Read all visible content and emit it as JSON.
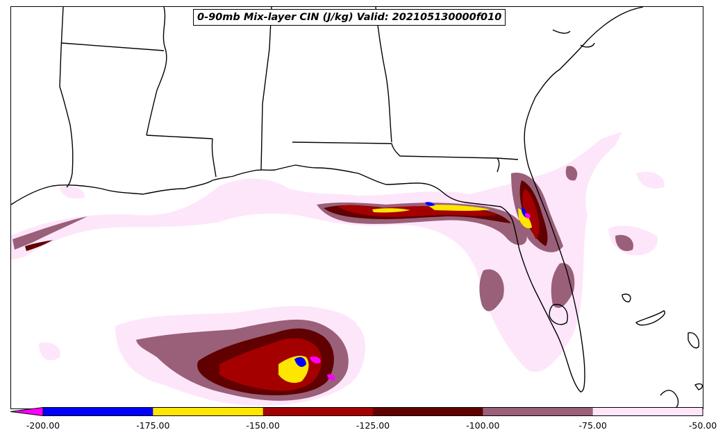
{
  "title": "0-90mb Mix-layer CIN (J/kg) Valid: 202105130000f010",
  "colors": {
    "lt_neg200": "#ff00ff",
    "c200_175": "#0000ff",
    "c175_150": "#ffe600",
    "c150_125": "#a50000",
    "c125_100": "#600000",
    "c100_75": "#9a6079",
    "c75_50": "#fde6fa",
    "boundary": "#000000"
  },
  "colorbar": {
    "extend": "min",
    "labels": [
      "-200.00",
      "-175.00",
      "-150.00",
      "-125.00",
      "-100.00",
      "-75.00",
      "-50.00"
    ]
  }
}
